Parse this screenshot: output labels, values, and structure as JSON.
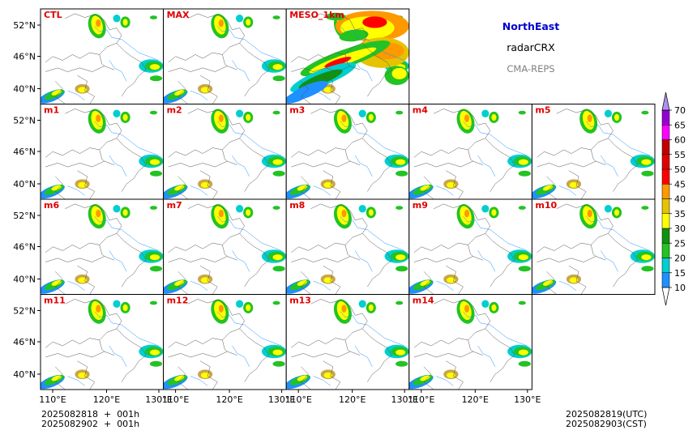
{
  "header": {
    "region": "NorthEast",
    "product": "radarCRX",
    "system": "CMA-REPS",
    "region_color": "#0000cc",
    "system_color": "#808080"
  },
  "panels": [
    {
      "label": "CTL",
      "row": 0,
      "col": 0,
      "style": "normal"
    },
    {
      "label": "MAX",
      "row": 0,
      "col": 1,
      "style": "normal"
    },
    {
      "label": "MESO_1km",
      "row": 0,
      "col": 2,
      "style": "dense"
    },
    {
      "label": "m1",
      "row": 1,
      "col": 0,
      "style": "normal"
    },
    {
      "label": "m2",
      "row": 1,
      "col": 1,
      "style": "normal"
    },
    {
      "label": "m3",
      "row": 1,
      "col": 2,
      "style": "normal"
    },
    {
      "label": "m4",
      "row": 1,
      "col": 3,
      "style": "normal"
    },
    {
      "label": "m5",
      "row": 1,
      "col": 4,
      "style": "normal"
    },
    {
      "label": "m6",
      "row": 2,
      "col": 0,
      "style": "normal"
    },
    {
      "label": "m7",
      "row": 2,
      "col": 1,
      "style": "normal"
    },
    {
      "label": "m8",
      "row": 2,
      "col": 2,
      "style": "normal"
    },
    {
      "label": "m9",
      "row": 2,
      "col": 3,
      "style": "normal"
    },
    {
      "label": "m10",
      "row": 2,
      "col": 4,
      "style": "normal"
    },
    {
      "label": "m11",
      "row": 3,
      "col": 0,
      "style": "normal"
    },
    {
      "label": "m12",
      "row": 3,
      "col": 1,
      "style": "normal"
    },
    {
      "label": "m13",
      "row": 3,
      "col": 2,
      "style": "normal"
    },
    {
      "label": "m14",
      "row": 3,
      "col": 3,
      "style": "normal"
    }
  ],
  "axes": {
    "lat_ticks": [
      "52°N",
      "46°N",
      "40°N"
    ],
    "lon_ticks": [
      "110°E",
      "120°E",
      "130°E"
    ]
  },
  "colorbar": {
    "levels": [
      "10",
      "15",
      "20",
      "25",
      "30",
      "35",
      "40",
      "45",
      "50",
      "55",
      "60",
      "65",
      "70"
    ],
    "colors": [
      "#1e90ff",
      "#00ced1",
      "#22c322",
      "#119111",
      "#ffff00",
      "#e6c300",
      "#ff9900",
      "#ff0000",
      "#dd0000",
      "#c00000",
      "#ff00ff",
      "#9400d3",
      "#ad90f0"
    ],
    "under_color": "#ffffff",
    "over_color": "#ad90f0"
  },
  "footer": {
    "init_utc": "2025082818  +  001h",
    "init_cst": "2025082902  +  001h",
    "valid_utc": "2025082819(UTC)",
    "valid_cst": "2025082903(CST)"
  }
}
